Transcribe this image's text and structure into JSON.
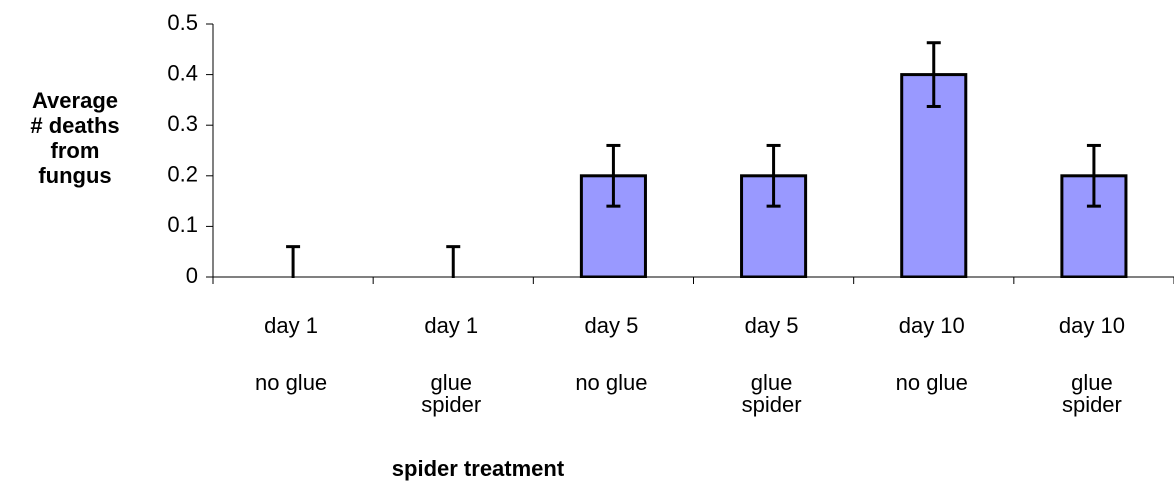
{
  "chart_data": {
    "type": "bar",
    "y_label": [
      "Average",
      "# deaths",
      "from",
      "fungus"
    ],
    "x_label": "spider treatment",
    "categories": [
      [
        "day 1",
        "no glue"
      ],
      [
        "day 1",
        "glue",
        "spider"
      ],
      [
        "day 5",
        "no glue"
      ],
      [
        "day 5",
        "glue",
        "spider"
      ],
      [
        "day 10",
        "no glue"
      ],
      [
        "day 10",
        "glue",
        "spider"
      ]
    ],
    "values": [
      0,
      0,
      0.2,
      0.2,
      0.4,
      0.2
    ],
    "errors": [
      0.06,
      0.06,
      0.06,
      0.06,
      0.063,
      0.06
    ],
    "color": "#9999ff",
    "ylim": [
      0,
      0.5
    ],
    "yticks": [
      0,
      0.1,
      0.2,
      0.3,
      0.4,
      0.5
    ]
  }
}
